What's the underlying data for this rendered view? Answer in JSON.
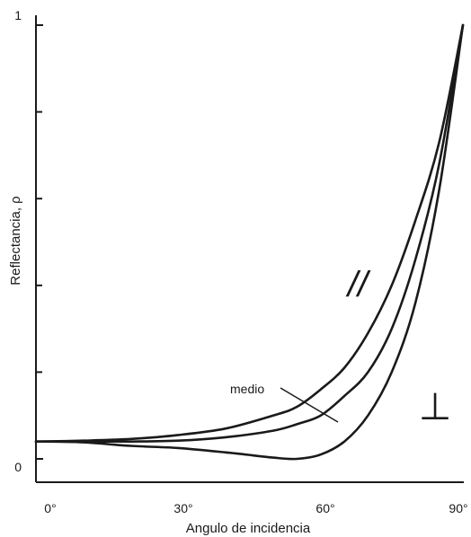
{
  "chart_data": {
    "type": "line",
    "title": "",
    "xlabel": "Angulo de incidencia",
    "ylabel": "Reflectancia, ρ",
    "xlim": [
      0,
      90
    ],
    "ylim": [
      0,
      1
    ],
    "x_ticks": [
      {
        "value": 0,
        "label": "0°"
      },
      {
        "value": 30,
        "label": "30°"
      },
      {
        "value": 60,
        "label": "60°"
      },
      {
        "value": 90,
        "label": "90°"
      }
    ],
    "y_ticks": [
      {
        "value": 0,
        "label": "0"
      },
      {
        "value": 1,
        "label": "1"
      }
    ],
    "y_minor_ticks": [
      0.2,
      0.4,
      0.6,
      0.8
    ],
    "grid": false,
    "legend": "none",
    "annotations": {
      "parallel_symbol": "//",
      "perpendicular_symbol": "⊥",
      "medio": "medio"
    },
    "x": [
      0,
      10,
      20,
      30,
      40,
      50,
      55,
      60,
      65,
      70,
      75,
      80,
      85,
      90
    ],
    "series": [
      {
        "values": [
          0.04,
          0.042,
          0.046,
          0.055,
          0.07,
          0.1,
          0.12,
          0.16,
          0.21,
          0.29,
          0.4,
          0.55,
          0.73,
          1.0
        ]
      },
      {
        "values": [
          0.04,
          0.04,
          0.04,
          0.042,
          0.05,
          0.065,
          0.08,
          0.1,
          0.145,
          0.2,
          0.3,
          0.46,
          0.68,
          1.0
        ]
      },
      {
        "values": [
          0.04,
          0.038,
          0.03,
          0.025,
          0.015,
          0.003,
          0.0,
          0.01,
          0.04,
          0.1,
          0.2,
          0.36,
          0.62,
          1.0
        ]
      }
    ]
  }
}
